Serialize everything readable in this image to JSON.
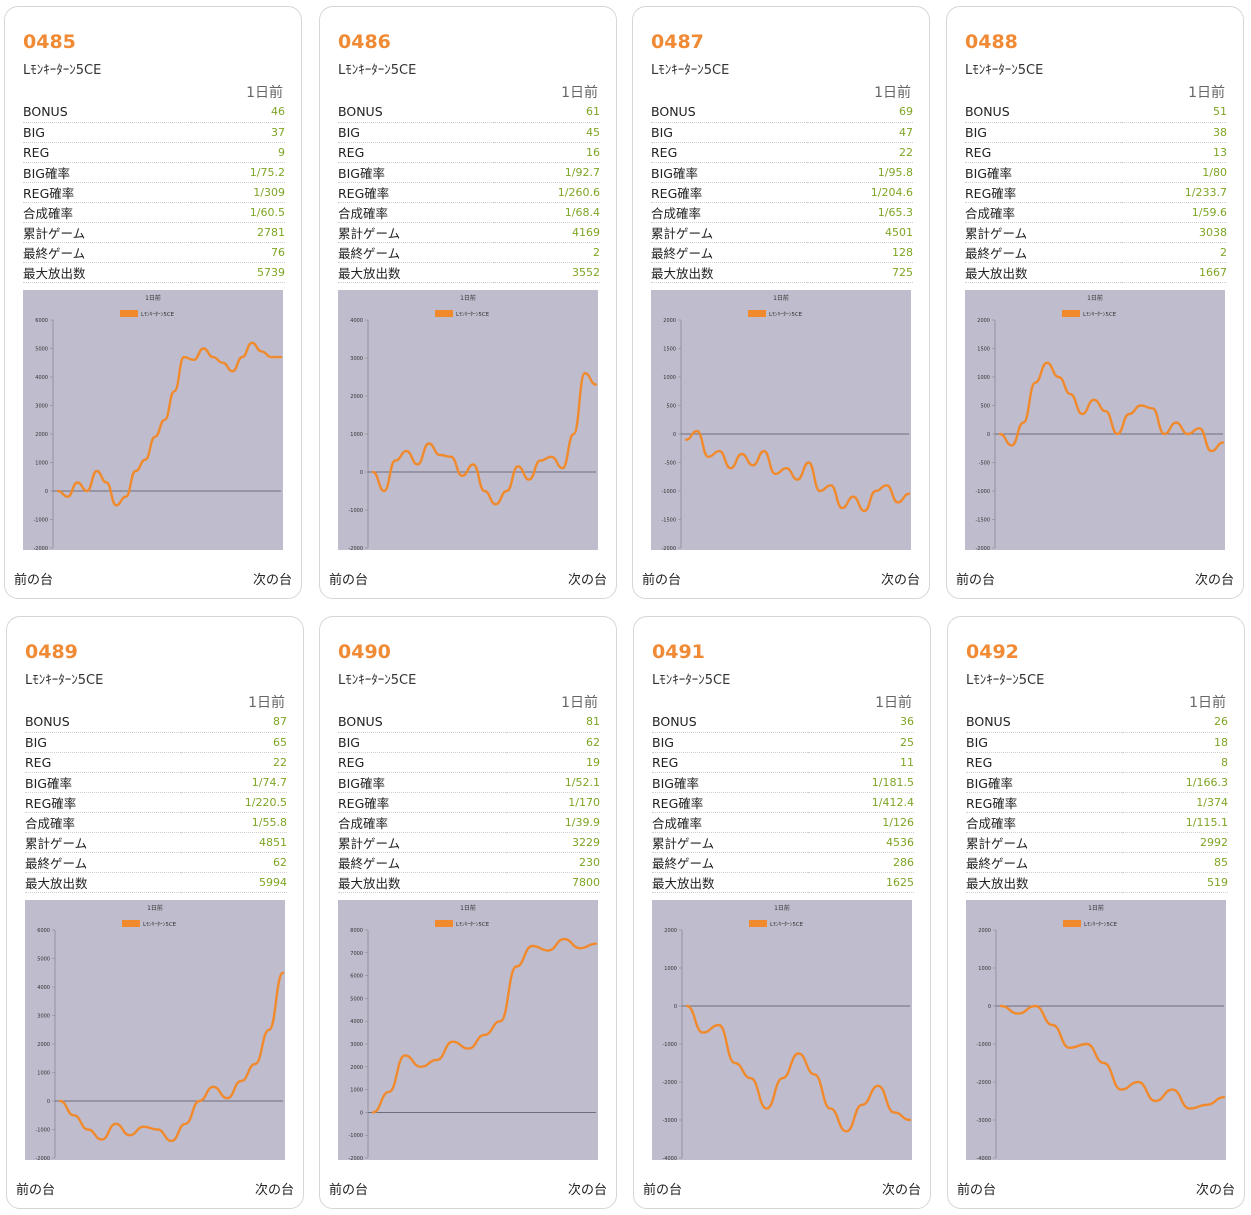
{
  "labels": {
    "period": "1日前",
    "prev": "前の台",
    "next": "次の台",
    "rows": [
      "BONUS",
      "BIG",
      "REG",
      "BIG確率",
      "REG確率",
      "合成確率",
      "累計ゲーム",
      "最終ゲーム",
      "最大放出数"
    ]
  },
  "colors": {
    "accent": "#f08a34",
    "value": "#7ea524",
    "plot_bg": "#bfbccd",
    "line": "#f08a2c"
  },
  "machines": [
    {
      "number": "0485",
      "model": "Lﾓﾝｷｰﾀｰﾝ5CE",
      "stats": [
        "46",
        "37",
        "9",
        "1/75.2",
        "1/309",
        "1/60.5",
        "2781",
        "76",
        "5739"
      ],
      "chart_data": {
        "type": "line",
        "title": "1日前",
        "legend": "Lﾓﾝｷｰﾀｰﾝ5CE",
        "ylim": [
          -2000,
          6000
        ],
        "yticks": [
          -2000,
          -1000,
          0,
          1000,
          2000,
          3000,
          4000,
          5000,
          6000
        ],
        "y": [
          0,
          -200,
          300,
          0,
          700,
          300,
          -500,
          -200,
          700,
          1100,
          1900,
          2500,
          3500,
          4700,
          4600,
          5000,
          4700,
          4500,
          4200,
          4700,
          5200,
          4900,
          4700,
          4700
        ]
      }
    },
    {
      "number": "0486",
      "model": "Lﾓﾝｷｰﾀｰﾝ5CE",
      "stats": [
        "61",
        "45",
        "16",
        "1/92.7",
        "1/260.6",
        "1/68.4",
        "4169",
        "2",
        "3552"
      ],
      "chart_data": {
        "type": "line",
        "title": "1日前",
        "legend": "Lﾓﾝｷｰﾀｰﾝ5CE",
        "ylim": [
          -2000,
          4000
        ],
        "yticks": [
          -2000,
          -1000,
          0,
          1000,
          2000,
          3000,
          4000
        ],
        "y": [
          0,
          -500,
          300,
          550,
          200,
          750,
          450,
          400,
          -100,
          200,
          -500,
          -850,
          -500,
          150,
          -200,
          300,
          400,
          100,
          1000,
          2600,
          2300
        ]
      }
    },
    {
      "number": "0487",
      "model": "Lﾓﾝｷｰﾀｰﾝ5CE",
      "stats": [
        "69",
        "47",
        "22",
        "1/95.8",
        "1/204.6",
        "1/65.3",
        "4501",
        "128",
        "725"
      ],
      "chart_data": {
        "type": "line",
        "title": "1日前",
        "legend": "Lﾓﾝｷｰﾀｰﾝ5CE",
        "ylim": [
          -2000,
          2000
        ],
        "yticks": [
          -2000,
          -1500,
          -1000,
          -500,
          0,
          500,
          1000,
          1500,
          2000
        ],
        "y": [
          -100,
          50,
          -400,
          -300,
          -600,
          -350,
          -550,
          -300,
          -700,
          -600,
          -800,
          -500,
          -1000,
          -900,
          -1300,
          -1100,
          -1350,
          -1000,
          -900,
          -1200,
          -1050
        ]
      }
    },
    {
      "number": "0488",
      "model": "Lﾓﾝｷｰﾀｰﾝ5CE",
      "stats": [
        "51",
        "38",
        "13",
        "1/80",
        "1/233.7",
        "1/59.6",
        "3038",
        "2",
        "1667"
      ],
      "chart_data": {
        "type": "line",
        "title": "1日前",
        "legend": "Lﾓﾝｷｰﾀｰﾝ5CE",
        "ylim": [
          -2000,
          2000
        ],
        "yticks": [
          -2000,
          -1500,
          -1000,
          -500,
          0,
          500,
          1000,
          1500,
          2000
        ],
        "y": [
          0,
          -200,
          200,
          900,
          1250,
          1000,
          700,
          350,
          600,
          400,
          0,
          350,
          500,
          450,
          0,
          200,
          0,
          100,
          -300,
          -150
        ]
      }
    },
    {
      "number": "0489",
      "model": "Lﾓﾝｷｰﾀｰﾝ5CE",
      "stats": [
        "87",
        "65",
        "22",
        "1/74.7",
        "1/220.5",
        "1/55.8",
        "4851",
        "62",
        "5994"
      ],
      "chart_data": {
        "type": "line",
        "title": "1日前",
        "legend": "Lﾓﾝｷｰﾀｰﾝ5CE",
        "ylim": [
          -2000,
          6000
        ],
        "yticks": [
          -2000,
          -1000,
          0,
          1000,
          2000,
          3000,
          4000,
          5000,
          6000
        ],
        "y": [
          0,
          -500,
          -1000,
          -1350,
          -800,
          -1200,
          -900,
          -1000,
          -1400,
          -800,
          0,
          500,
          100,
          700,
          1300,
          2500,
          4500
        ]
      }
    },
    {
      "number": "0490",
      "model": "Lﾓﾝｷｰﾀｰﾝ5CE",
      "stats": [
        "81",
        "62",
        "19",
        "1/52.1",
        "1/170",
        "1/39.9",
        "3229",
        "230",
        "7800"
      ],
      "chart_data": {
        "type": "line",
        "title": "1日前",
        "legend": "Lﾓﾝｷｰﾀｰﾝ5CE",
        "ylim": [
          -2000,
          8000
        ],
        "yticks": [
          -2000,
          -1000,
          0,
          1000,
          2000,
          3000,
          4000,
          5000,
          6000,
          7000,
          8000
        ],
        "y": [
          0,
          900,
          2500,
          2000,
          2300,
          3100,
          2800,
          3400,
          4000,
          6400,
          7300,
          7100,
          7600,
          7200,
          7400
        ]
      }
    },
    {
      "number": "0491",
      "model": "Lﾓﾝｷｰﾀｰﾝ5CE",
      "stats": [
        "36",
        "25",
        "11",
        "1/181.5",
        "1/412.4",
        "1/126",
        "4536",
        "286",
        "1625"
      ],
      "chart_data": {
        "type": "line",
        "title": "1日前",
        "legend": "Lﾓﾝｷｰﾀｰﾝ5CE",
        "ylim": [
          -4000,
          2000
        ],
        "yticks": [
          -4000,
          -3000,
          -2000,
          -1000,
          0,
          1000,
          2000
        ],
        "y": [
          0,
          -700,
          -500,
          -1500,
          -1900,
          -2700,
          -1900,
          -1250,
          -1800,
          -2700,
          -3300,
          -2600,
          -2100,
          -2800,
          -3000
        ]
      }
    },
    {
      "number": "0492",
      "model": "Lﾓﾝｷｰﾀｰﾝ5CE",
      "stats": [
        "26",
        "18",
        "8",
        "1/166.3",
        "1/374",
        "1/115.1",
        "2992",
        "85",
        "519"
      ],
      "chart_data": {
        "type": "line",
        "title": "1日前",
        "legend": "Lﾓﾝｷｰﾀｰﾝ5CE",
        "ylim": [
          -4000,
          2000
        ],
        "yticks": [
          -4000,
          -3000,
          -2000,
          -1000,
          0,
          1000,
          2000
        ],
        "y": [
          0,
          -200,
          0,
          -500,
          -1100,
          -1000,
          -1500,
          -2200,
          -2000,
          -2500,
          -2200,
          -2700,
          -2600,
          -2400
        ]
      }
    }
  ]
}
